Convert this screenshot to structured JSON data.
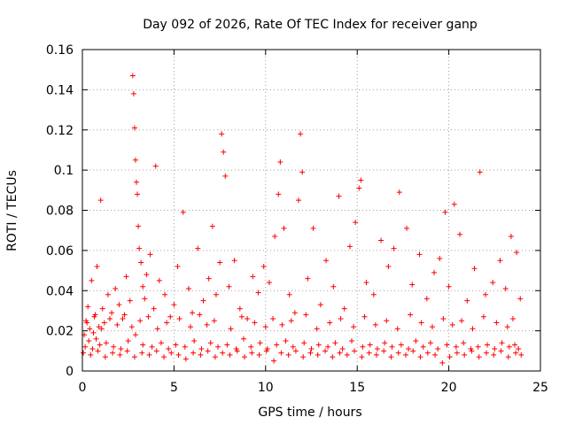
{
  "chart_data": {
    "type": "scatter",
    "title": "Day 092 of 2026, Rate Of TEC Index for receiver ganp",
    "xlabel": "GPS time / hours",
    "ylabel": "ROTI / TECUs",
    "xlim": [
      0,
      25
    ],
    "ylim": [
      0,
      0.16
    ],
    "xticks": [
      0,
      5,
      10,
      15,
      20,
      25
    ],
    "xtick_labels": [
      "0",
      "5",
      "10",
      "15",
      "20",
      "25"
    ],
    "yticks": [
      0,
      0.02,
      0.04,
      0.06,
      0.08,
      0.1,
      0.12,
      0.14,
      0.16
    ],
    "ytick_labels": [
      "0",
      "0.02",
      "0.04",
      "0.06",
      "0.08",
      "0.1",
      "0.12",
      "0.14",
      "0.16"
    ],
    "grid": true,
    "marker": "plus",
    "color": "#ff0000",
    "series": [
      {
        "name": "ROTI",
        "x": [
          0.1,
          0.2,
          0.3,
          0.4,
          0.5,
          0.6,
          0.7,
          0.8,
          0.9,
          1.0,
          1.1,
          1.2,
          1.4,
          1.6,
          1.8,
          2.0,
          2.2,
          2.4,
          2.6,
          2.75,
          2.8,
          2.85,
          2.9,
          2.95,
          3.0,
          3.05,
          3.1,
          3.2,
          3.3,
          3.4,
          3.5,
          3.7,
          3.9,
          4.0,
          4.2,
          4.5,
          4.8,
          5.0,
          5.2,
          5.5,
          5.8,
          6.0,
          6.3,
          6.6,
          6.9,
          7.1,
          7.3,
          7.5,
          7.6,
          7.7,
          7.8,
          8.0,
          8.3,
          8.6,
          9.0,
          9.3,
          9.6,
          9.9,
          10.2,
          10.5,
          10.7,
          10.8,
          11.0,
          11.3,
          11.6,
          11.8,
          11.9,
          12.0,
          12.3,
          12.6,
          13.0,
          13.3,
          13.7,
          14.0,
          14.3,
          14.6,
          14.9,
          15.1,
          15.2,
          15.5,
          15.9,
          16.3,
          16.7,
          17.0,
          17.3,
          17.7,
          18.0,
          18.4,
          18.8,
          19.2,
          19.5,
          19.8,
          20.0,
          20.3,
          20.6,
          21.0,
          21.4,
          21.7,
          22.0,
          22.4,
          22.8,
          23.1,
          23.4,
          23.7,
          23.9,
          0.15,
          0.35,
          0.55,
          0.75,
          0.95,
          1.3,
          1.7,
          2.1,
          2.5,
          2.9,
          3.3,
          3.8,
          4.3,
          4.7,
          5.1,
          5.6,
          6.1,
          6.5,
          7.0,
          7.4,
          7.9,
          8.4,
          8.8,
          9.2,
          9.7,
          10.1,
          10.6,
          11.1,
          11.5,
          12.1,
          12.5,
          12.9,
          13.4,
          13.8,
          14.2,
          14.7,
          15.3,
          15.7,
          16.1,
          16.5,
          16.9,
          17.4,
          17.8,
          18.2,
          18.6,
          19.0,
          19.4,
          19.9,
          20.4,
          20.8,
          21.2,
          21.6,
          22.1,
          22.5,
          22.9,
          23.3,
          23.6,
          23.8,
          0.25,
          0.65,
          1.05,
          1.5,
          1.9,
          2.3,
          2.7,
          3.15,
          3.6,
          4.1,
          4.6,
          5.3,
          5.9,
          6.4,
          6.8,
          7.2,
          8.1,
          8.7,
          9.4,
          10.0,
          10.4,
          10.9,
          11.4,
          12.2,
          12.8,
          13.5,
          14.1,
          14.8,
          15.4,
          16.0,
          16.6,
          17.2,
          17.9,
          18.5,
          19.1,
          19.7,
          20.2,
          20.7,
          21.3,
          21.9,
          22.6,
          23.2,
          23.5,
          0.05,
          0.45,
          0.85,
          1.25,
          1.65,
          2.05,
          2.45,
          2.85,
          3.25,
          3.65,
          4.05,
          4.45,
          4.85,
          5.25,
          5.65,
          6.05,
          6.45,
          6.85,
          7.25,
          7.65,
          8.05,
          8.45,
          8.85,
          9.25,
          9.65,
          10.05,
          10.45,
          10.85,
          11.25,
          11.65,
          12.05,
          12.45,
          12.85,
          13.25,
          13.65,
          14.05,
          14.45,
          14.85,
          15.25,
          15.65,
          16.05,
          16.45,
          16.85,
          17.25,
          17.65,
          18.05,
          18.45,
          18.85,
          19.25,
          19.65,
          20.05,
          20.45,
          20.85,
          21.25,
          21.65,
          22.05,
          22.45,
          22.85,
          23.25,
          23.65,
          23.95
        ],
        "y": [
          0.018,
          0.025,
          0.032,
          0.021,
          0.045,
          0.019,
          0.028,
          0.052,
          0.022,
          0.085,
          0.031,
          0.024,
          0.038,
          0.029,
          0.041,
          0.033,
          0.026,
          0.047,
          0.035,
          0.147,
          0.138,
          0.121,
          0.105,
          0.094,
          0.088,
          0.072,
          0.061,
          0.054,
          0.042,
          0.036,
          0.048,
          0.058,
          0.031,
          0.102,
          0.045,
          0.038,
          0.027,
          0.033,
          0.052,
          0.079,
          0.041,
          0.029,
          0.061,
          0.035,
          0.046,
          0.072,
          0.038,
          0.054,
          0.118,
          0.109,
          0.097,
          0.042,
          0.055,
          0.031,
          0.026,
          0.047,
          0.039,
          0.052,
          0.044,
          0.067,
          0.088,
          0.104,
          0.071,
          0.038,
          0.029,
          0.085,
          0.118,
          0.099,
          0.046,
          0.071,
          0.033,
          0.055,
          0.042,
          0.087,
          0.031,
          0.062,
          0.074,
          0.091,
          0.095,
          0.044,
          0.038,
          0.065,
          0.052,
          0.061,
          0.089,
          0.071,
          0.043,
          0.058,
          0.036,
          0.049,
          0.056,
          0.079,
          0.042,
          0.083,
          0.068,
          0.035,
          0.051,
          0.099,
          0.038,
          0.044,
          0.055,
          0.041,
          0.067,
          0.059,
          0.036,
          0.012,
          0.015,
          0.011,
          0.016,
          0.013,
          0.014,
          0.012,
          0.011,
          0.015,
          0.018,
          0.013,
          0.012,
          0.014,
          0.011,
          0.013,
          0.012,
          0.015,
          0.011,
          0.014,
          0.012,
          0.013,
          0.011,
          0.016,
          0.012,
          0.014,
          0.011,
          0.013,
          0.015,
          0.012,
          0.014,
          0.011,
          0.013,
          0.012,
          0.014,
          0.011,
          0.015,
          0.012,
          0.013,
          0.011,
          0.014,
          0.012,
          0.013,
          0.011,
          0.015,
          0.012,
          0.014,
          0.011,
          0.013,
          0.012,
          0.014,
          0.011,
          0.012,
          0.013,
          0.011,
          0.014,
          0.012,
          0.013,
          0.011,
          0.024,
          0.027,
          0.021,
          0.026,
          0.023,
          0.028,
          0.022,
          0.025,
          0.027,
          0.021,
          0.024,
          0.026,
          0.022,
          0.028,
          0.023,
          0.025,
          0.021,
          0.027,
          0.024,
          0.022,
          0.026,
          0.023,
          0.025,
          0.028,
          0.021,
          0.024,
          0.026,
          0.022,
          0.027,
          0.023,
          0.025,
          0.021,
          0.028,
          0.024,
          0.022,
          0.026,
          0.023,
          0.025,
          0.021,
          0.027,
          0.024,
          0.022,
          0.026,
          0.009,
          0.008,
          0.01,
          0.007,
          0.009,
          0.008,
          0.01,
          0.007,
          0.009,
          0.008,
          0.01,
          0.007,
          0.009,
          0.008,
          0.006,
          0.009,
          0.008,
          0.01,
          0.007,
          0.009,
          0.008,
          0.01,
          0.007,
          0.009,
          0.008,
          0.01,
          0.005,
          0.009,
          0.008,
          0.01,
          0.007,
          0.009,
          0.008,
          0.01,
          0.007,
          0.009,
          0.008,
          0.01,
          0.007,
          0.009,
          0.008,
          0.01,
          0.007,
          0.009,
          0.008,
          0.01,
          0.007,
          0.009,
          0.008,
          0.004,
          0.007,
          0.009,
          0.008,
          0.01,
          0.007,
          0.009,
          0.008,
          0.01,
          0.007,
          0.009,
          0.008
        ]
      }
    ]
  }
}
